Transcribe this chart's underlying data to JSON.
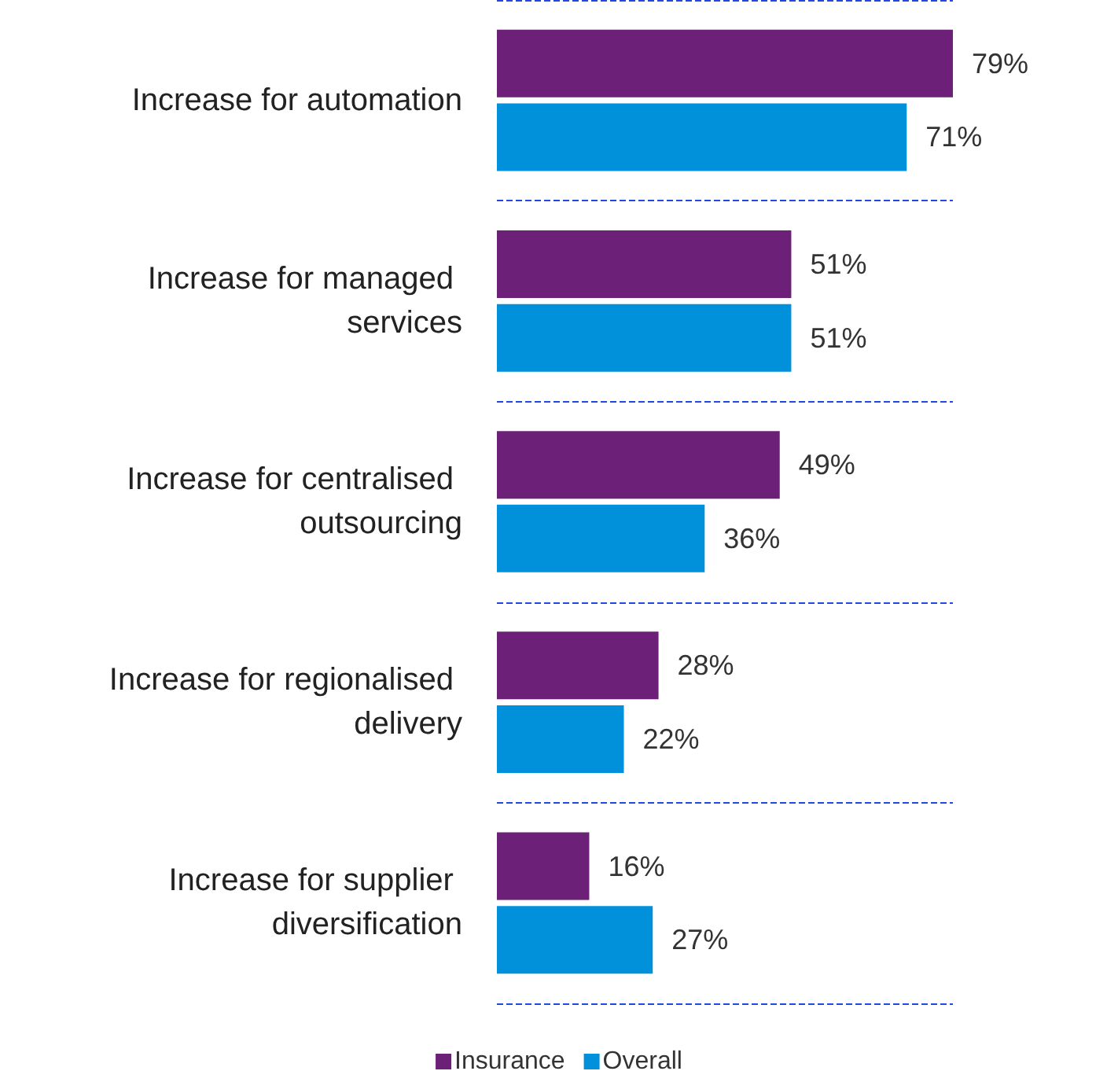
{
  "chart_data": {
    "type": "bar",
    "orientation": "horizontal",
    "categories": [
      "Increase for automation",
      "Increase for managed services",
      "Increase for centralised outsourcing",
      "Increase for regionalised delivery",
      "Increase for supplier diversification"
    ],
    "series": [
      {
        "name": "Insurance",
        "color": "#6d2077",
        "values": [
          79,
          51,
          49,
          28,
          16
        ],
        "value_labels": [
          "79%",
          "51%",
          "49%",
          "28%",
          "16%"
        ]
      },
      {
        "name": "Overall",
        "color": "#0091da",
        "values": [
          71,
          51,
          36,
          22,
          27
        ],
        "value_labels": [
          "71%",
          "51%",
          "36%",
          "22%",
          "27%"
        ]
      }
    ],
    "grid": "y",
    "legend": "bottom"
  }
}
